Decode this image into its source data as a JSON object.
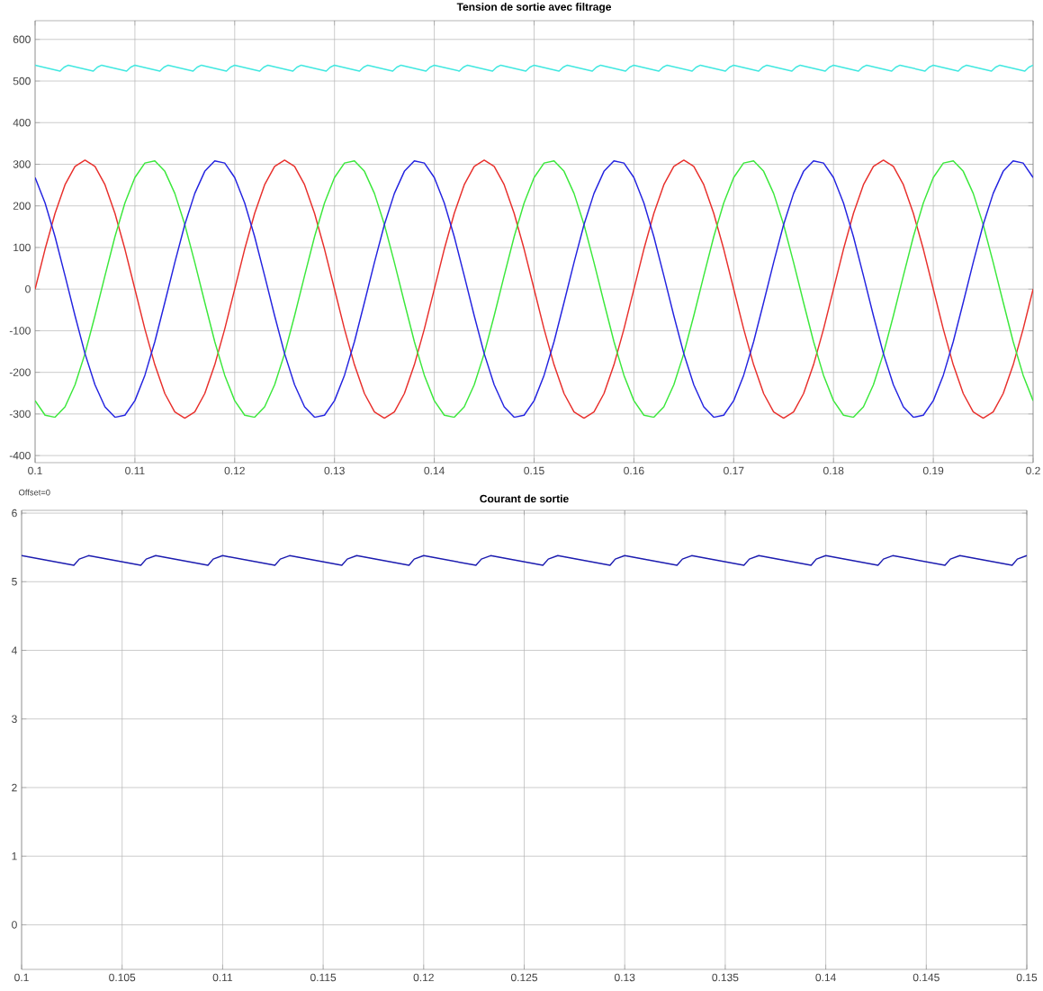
{
  "chart_data": [
    {
      "type": "line",
      "title": "Tension de sortie avec filtrage",
      "annotations": [
        "Offset=0"
      ],
      "xlim": [
        0.1,
        0.2
      ],
      "ylim": [
        -417,
        645
      ],
      "xticks": [
        0.1,
        0.11,
        0.12,
        0.13,
        0.14,
        0.15,
        0.16,
        0.17,
        0.18,
        0.19,
        0.2
      ],
      "yticks": [
        -400,
        -300,
        -200,
        -100,
        0,
        100,
        200,
        300,
        400,
        500,
        600
      ],
      "grid": true,
      "x": [
        0.1,
        0.101,
        0.102,
        0.103,
        0.104,
        0.105,
        0.106,
        0.107,
        0.108,
        0.109,
        0.11,
        0.111,
        0.112,
        0.113,
        0.114,
        0.115,
        0.116,
        0.117,
        0.118,
        0.119,
        0.12,
        0.121,
        0.122,
        0.123,
        0.124,
        0.125,
        0.126,
        0.127,
        0.128,
        0.129,
        0.13,
        0.131,
        0.132,
        0.133,
        0.134,
        0.135,
        0.136,
        0.137,
        0.138,
        0.139,
        0.14,
        0.141,
        0.142,
        0.143,
        0.144,
        0.145,
        0.146,
        0.147,
        0.148,
        0.149,
        0.15,
        0.151,
        0.152,
        0.153,
        0.154,
        0.155,
        0.156,
        0.157,
        0.158,
        0.159,
        0.16,
        0.161,
        0.162,
        0.163,
        0.164,
        0.165,
        0.166,
        0.167,
        0.168,
        0.169,
        0.17,
        0.171,
        0.172,
        0.173,
        0.174,
        0.175,
        0.176,
        0.177,
        0.178,
        0.179,
        0.18,
        0.181,
        0.182,
        0.183,
        0.184,
        0.185,
        0.186,
        0.187,
        0.188,
        0.189,
        0.19,
        0.191,
        0.192,
        0.193,
        0.194,
        0.195,
        0.196,
        0.197,
        0.198,
        0.199,
        0.2
      ],
      "series": [
        {
          "color": "#40e8e0",
          "x": [
            0.1,
            0.1025,
            0.1029,
            0.10333,
            0.10583,
            0.10623,
            0.10667,
            0.10917,
            0.10957,
            0.11,
            0.1125,
            0.1129,
            0.11333,
            0.11583,
            0.11623,
            0.11667,
            0.11917,
            0.11957,
            0.12,
            0.1225,
            0.1229,
            0.12333,
            0.12583,
            0.12623,
            0.12667,
            0.12917,
            0.12957,
            0.13,
            0.1325,
            0.1329,
            0.13333,
            0.13583,
            0.13623,
            0.13667,
            0.13917,
            0.13957,
            0.14,
            0.1425,
            0.1429,
            0.14333,
            0.14583,
            0.14623,
            0.14667,
            0.14917,
            0.14957,
            0.15,
            0.1525,
            0.1529,
            0.15333,
            0.15583,
            0.15623,
            0.15667,
            0.15917,
            0.15957,
            0.16,
            0.1625,
            0.1629,
            0.16333,
            0.16583,
            0.16623,
            0.16667,
            0.16917,
            0.16957,
            0.17,
            0.1725,
            0.1729,
            0.17333,
            0.17583,
            0.17623,
            0.17667,
            0.17917,
            0.17957,
            0.18,
            0.1825,
            0.1829,
            0.18333,
            0.18583,
            0.18623,
            0.18667,
            0.18917,
            0.18957,
            0.19,
            0.1925,
            0.1929,
            0.19333,
            0.19583,
            0.19623,
            0.19667,
            0.19917,
            0.19957,
            0.2
          ],
          "values": [
            538,
            524,
            533,
            538,
            524,
            533,
            538,
            524,
            533,
            538,
            524,
            533,
            538,
            524,
            533,
            538,
            524,
            533,
            538,
            524,
            533,
            538,
            524,
            533,
            538,
            524,
            533,
            538,
            524,
            533,
            538,
            524,
            533,
            538,
            524,
            533,
            538,
            524,
            533,
            538,
            524,
            533,
            538,
            524,
            533,
            538,
            524,
            533,
            538,
            524,
            533,
            538,
            524,
            533,
            538,
            524,
            533,
            538,
            524,
            533,
            538,
            524,
            533,
            538,
            524,
            533,
            538,
            524,
            533,
            538,
            524,
            533,
            538,
            524,
            533,
            538,
            524,
            533,
            538,
            524,
            533,
            538,
            524,
            533,
            538,
            524,
            533,
            538,
            524,
            533,
            538
          ]
        },
        {
          "color": "#e8302c",
          "values": [
            0,
            96,
            182,
            251,
            295,
            310,
            295,
            251,
            182,
            96,
            0,
            -96,
            -182,
            -251,
            -295,
            -310,
            -295,
            -251,
            -182,
            -96,
            0,
            96,
            182,
            251,
            295,
            310,
            295,
            251,
            182,
            96,
            0,
            -96,
            -182,
            -251,
            -295,
            -310,
            -295,
            -251,
            -182,
            -96,
            0,
            96,
            182,
            251,
            295,
            310,
            295,
            251,
            182,
            96,
            0,
            -96,
            -182,
            -251,
            -295,
            -310,
            -295,
            -251,
            -182,
            -96,
            0,
            96,
            182,
            251,
            295,
            310,
            295,
            251,
            182,
            96,
            0,
            -96,
            -182,
            -251,
            -295,
            -310,
            -295,
            -251,
            -182,
            -96,
            0,
            96,
            182,
            251,
            295,
            310,
            295,
            251,
            182,
            96,
            0,
            -96,
            -182,
            -251,
            -295,
            -310,
            -295,
            -251,
            -182,
            -96,
            0
          ]
        },
        {
          "color": "#3ce83c",
          "values": [
            -268,
            -303,
            -308,
            -283,
            -230,
            -155,
            -64,
            32,
            126,
            207,
            268,
            303,
            308,
            283,
            230,
            155,
            64,
            -32,
            -126,
            -207,
            -268,
            -303,
            -308,
            -283,
            -230,
            -155,
            -64,
            32,
            126,
            207,
            268,
            303,
            308,
            283,
            230,
            155,
            64,
            -32,
            -126,
            -207,
            -268,
            -303,
            -308,
            -283,
            -230,
            -155,
            -64,
            32,
            126,
            207,
            268,
            303,
            308,
            283,
            230,
            155,
            64,
            -32,
            -126,
            -207,
            -268,
            -303,
            -308,
            -283,
            -230,
            -155,
            -64,
            32,
            126,
            207,
            268,
            303,
            308,
            283,
            230,
            155,
            64,
            -32,
            -126,
            -207,
            -268,
            -303,
            -308,
            -283,
            -230,
            -155,
            -64,
            32,
            126,
            207,
            268,
            303,
            308,
            283,
            230,
            155,
            64,
            -32,
            -126,
            -207,
            -268
          ]
        },
        {
          "color": "#2424e0",
          "values": [
            268,
            207,
            126,
            32,
            -64,
            -155,
            -230,
            -283,
            -308,
            -303,
            -268,
            -207,
            -126,
            -32,
            64,
            155,
            230,
            283,
            308,
            303,
            268,
            207,
            126,
            32,
            -64,
            -155,
            -230,
            -283,
            -308,
            -303,
            -268,
            -207,
            -126,
            -32,
            64,
            155,
            230,
            283,
            308,
            303,
            268,
            207,
            126,
            32,
            -64,
            -155,
            -230,
            -283,
            -308,
            -303,
            -268,
            -207,
            -126,
            -32,
            64,
            155,
            230,
            283,
            308,
            303,
            268,
            207,
            126,
            32,
            -64,
            -155,
            -230,
            -283,
            -308,
            -303,
            -268,
            -207,
            -126,
            -32,
            64,
            155,
            230,
            283,
            308,
            303,
            268,
            207,
            126,
            32,
            -64,
            -155,
            -230,
            -283,
            -308,
            -303,
            -268,
            -207,
            -126,
            -32,
            64,
            155,
            230,
            283,
            308,
            303,
            268
          ]
        }
      ]
    },
    {
      "type": "line",
      "title": "Courant de sortie",
      "xlim": [
        0.1,
        0.15
      ],
      "ylim": [
        -0.65,
        6.04
      ],
      "xticks": [
        0.1,
        0.105,
        0.11,
        0.115,
        0.12,
        0.125,
        0.13,
        0.135,
        0.14,
        0.145,
        0.15
      ],
      "yticks": [
        0,
        1,
        2,
        3,
        4,
        5,
        6
      ],
      "grid": true,
      "x": [
        0.1,
        0.1026,
        0.10287,
        0.10333,
        0.10593,
        0.1062,
        0.10667,
        0.10927,
        0.10953,
        0.11,
        0.1126,
        0.11287,
        0.11333,
        0.11593,
        0.1162,
        0.11667,
        0.11927,
        0.11953,
        0.12,
        0.1226,
        0.12287,
        0.12333,
        0.12593,
        0.1262,
        0.12667,
        0.12927,
        0.12953,
        0.13,
        0.1326,
        0.13287,
        0.13333,
        0.13593,
        0.1362,
        0.13667,
        0.13927,
        0.13953,
        0.14,
        0.1426,
        0.14287,
        0.14333,
        0.14593,
        0.1462,
        0.14667,
        0.14927,
        0.14953,
        0.15
      ],
      "series": [
        {
          "color": "#1c1cb0",
          "values": [
            5.38,
            5.24,
            5.33,
            5.38,
            5.24,
            5.33,
            5.38,
            5.24,
            5.33,
            5.38,
            5.24,
            5.33,
            5.38,
            5.24,
            5.33,
            5.38,
            5.24,
            5.33,
            5.38,
            5.24,
            5.33,
            5.38,
            5.24,
            5.33,
            5.38,
            5.24,
            5.33,
            5.38,
            5.24,
            5.33,
            5.38,
            5.24,
            5.33,
            5.38,
            5.24,
            5.33,
            5.38,
            5.24,
            5.33,
            5.38,
            5.24,
            5.33,
            5.38,
            5.24,
            5.33,
            5.38
          ]
        }
      ]
    }
  ]
}
